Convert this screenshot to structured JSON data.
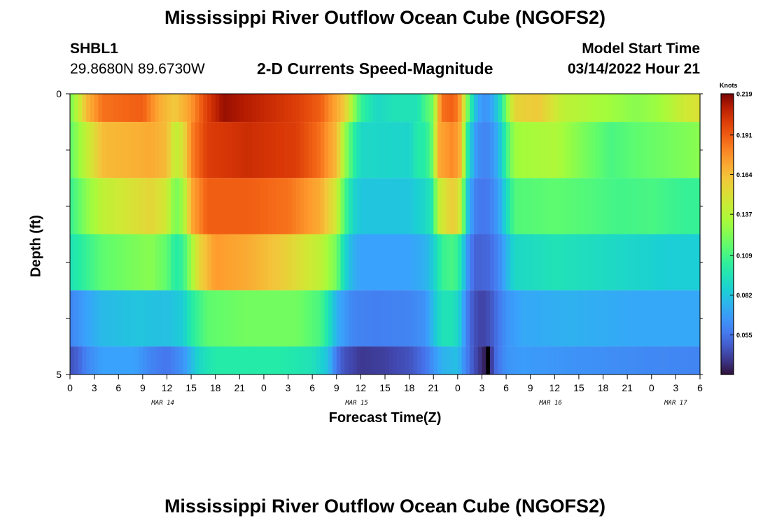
{
  "header": {
    "title": "Mississippi River Outflow Ocean Cube (NGOFS2)",
    "station": "SHBL1",
    "coordinates": "29.8680N  89.6730W",
    "start_label": "Model Start Time",
    "start_value": "03/14/2022 Hour 21"
  },
  "footer": {
    "title": "Mississippi River Outflow Ocean Cube (NGOFS2)"
  },
  "chart_data": {
    "type": "heatmap",
    "title": "2-D Currents Speed-Magnitude",
    "xlabel": "Forecast Time(Z)",
    "ylabel": "Depth (ft)",
    "y_ticks": [
      "0",
      "5"
    ],
    "ylim": [
      0,
      5
    ],
    "x_tick_labels": [
      "0",
      "3",
      "6",
      "9",
      "12",
      "15",
      "18",
      "21",
      "0",
      "3",
      "6",
      "9",
      "12",
      "15",
      "18",
      "21",
      "0",
      "3",
      "6",
      "9",
      "12",
      "15",
      "18",
      "21",
      "0",
      "3",
      "6"
    ],
    "date_labels": [
      {
        "label": "MAR 14",
        "hour": 11.5
      },
      {
        "label": "MAR 15",
        "hour": 35.5
      },
      {
        "label": "MAR 16",
        "hour": 59.5
      },
      {
        "label": "MAR 17",
        "hour": 75
      }
    ],
    "colorbar": {
      "unit": "Knots",
      "min": 0.028,
      "max": 0.219,
      "tick_labels": [
        "0.219",
        "0.191",
        "0.164",
        "0.137",
        "0.109",
        "0.082",
        "0.055"
      ]
    },
    "hour_range": [
      0,
      78
    ],
    "layers": [
      {
        "depth_top": 0.0,
        "depth_bottom": 0.5,
        "keys": [
          [
            0,
            0.12
          ],
          [
            1,
            0.14
          ],
          [
            2,
            0.165
          ],
          [
            4,
            0.185
          ],
          [
            9,
            0.19
          ],
          [
            11,
            0.17
          ],
          [
            13,
            0.16
          ],
          [
            15,
            0.175
          ],
          [
            17,
            0.2
          ],
          [
            19,
            0.215
          ],
          [
            22,
            0.21
          ],
          [
            25,
            0.205
          ],
          [
            28,
            0.2
          ],
          [
            31,
            0.19
          ],
          [
            33,
            0.17
          ],
          [
            34,
            0.16
          ],
          [
            35,
            0.13
          ],
          [
            36,
            0.105
          ],
          [
            38,
            0.09
          ],
          [
            40,
            0.095
          ],
          [
            43,
            0.095
          ],
          [
            44,
            0.11
          ],
          [
            45,
            0.12
          ],
          [
            45.5,
            0.16
          ],
          [
            46,
            0.185
          ],
          [
            47.5,
            0.19
          ],
          [
            48.5,
            0.17
          ],
          [
            49,
            0.13
          ],
          [
            50,
            0.085
          ],
          [
            51,
            0.065
          ],
          [
            52,
            0.068
          ],
          [
            53,
            0.085
          ],
          [
            54,
            0.12
          ],
          [
            55,
            0.155
          ],
          [
            58,
            0.16
          ],
          [
            61,
            0.14
          ],
          [
            64,
            0.135
          ],
          [
            67,
            0.13
          ],
          [
            70,
            0.125
          ],
          [
            73,
            0.13
          ],
          [
            76,
            0.145
          ],
          [
            78,
            0.15
          ]
        ]
      },
      {
        "depth_top": 0.5,
        "depth_bottom": 1.5,
        "keys": [
          [
            0,
            0.115
          ],
          [
            2,
            0.14
          ],
          [
            4,
            0.165
          ],
          [
            10,
            0.17
          ],
          [
            12,
            0.165
          ],
          [
            13,
            0.14
          ],
          [
            14,
            0.15
          ],
          [
            15,
            0.18
          ],
          [
            17,
            0.2
          ],
          [
            22,
            0.205
          ],
          [
            28,
            0.2
          ],
          [
            31,
            0.185
          ],
          [
            33,
            0.165
          ],
          [
            34,
            0.13
          ],
          [
            35,
            0.105
          ],
          [
            36,
            0.09
          ],
          [
            42,
            0.088
          ],
          [
            43,
            0.1
          ],
          [
            44,
            0.1
          ],
          [
            45,
            0.12
          ],
          [
            45.5,
            0.17
          ],
          [
            47.5,
            0.18
          ],
          [
            48.5,
            0.165
          ],
          [
            49,
            0.11
          ],
          [
            50,
            0.07
          ],
          [
            51,
            0.06
          ],
          [
            52,
            0.062
          ],
          [
            53,
            0.075
          ],
          [
            54,
            0.105
          ],
          [
            55,
            0.13
          ],
          [
            60,
            0.135
          ],
          [
            64,
            0.12
          ],
          [
            67,
            0.11
          ],
          [
            70,
            0.115
          ],
          [
            74,
            0.12
          ],
          [
            78,
            0.125
          ]
        ]
      },
      {
        "depth_top": 1.5,
        "depth_bottom": 2.5,
        "keys": [
          [
            0,
            0.105
          ],
          [
            2,
            0.125
          ],
          [
            4,
            0.14
          ],
          [
            10,
            0.155
          ],
          [
            12,
            0.145
          ],
          [
            13,
            0.12
          ],
          [
            14,
            0.13
          ],
          [
            15,
            0.17
          ],
          [
            17,
            0.19
          ],
          [
            22,
            0.19
          ],
          [
            27,
            0.185
          ],
          [
            31,
            0.17
          ],
          [
            33,
            0.145
          ],
          [
            34,
            0.11
          ],
          [
            35,
            0.09
          ],
          [
            36,
            0.082
          ],
          [
            42,
            0.082
          ],
          [
            44,
            0.09
          ],
          [
            45,
            0.1
          ],
          [
            45.5,
            0.14
          ],
          [
            47.5,
            0.16
          ],
          [
            48.5,
            0.14
          ],
          [
            49,
            0.09
          ],
          [
            50,
            0.06
          ],
          [
            51,
            0.055
          ],
          [
            52,
            0.058
          ],
          [
            53,
            0.068
          ],
          [
            54,
            0.09
          ],
          [
            55,
            0.112
          ],
          [
            60,
            0.115
          ],
          [
            64,
            0.112
          ],
          [
            68,
            0.108
          ],
          [
            72,
            0.11
          ],
          [
            76,
            0.105
          ],
          [
            78,
            0.105
          ]
        ]
      },
      {
        "depth_top": 2.5,
        "depth_bottom": 3.5,
        "keys": [
          [
            0,
            0.095
          ],
          [
            2,
            0.105
          ],
          [
            4,
            0.115
          ],
          [
            10,
            0.125
          ],
          [
            12,
            0.115
          ],
          [
            13,
            0.1
          ],
          [
            14,
            0.105
          ],
          [
            16,
            0.155
          ],
          [
            18,
            0.175
          ],
          [
            22,
            0.17
          ],
          [
            26,
            0.16
          ],
          [
            31,
            0.14
          ],
          [
            33,
            0.12
          ],
          [
            34,
            0.09
          ],
          [
            35,
            0.075
          ],
          [
            36,
            0.07
          ],
          [
            42,
            0.07
          ],
          [
            44,
            0.075
          ],
          [
            45,
            0.085
          ],
          [
            46,
            0.105
          ],
          [
            47.5,
            0.11
          ],
          [
            48.5,
            0.095
          ],
          [
            49,
            0.07
          ],
          [
            50,
            0.05
          ],
          [
            51,
            0.05
          ],
          [
            52,
            0.052
          ],
          [
            53,
            0.06
          ],
          [
            54,
            0.075
          ],
          [
            55,
            0.09
          ],
          [
            60,
            0.095
          ],
          [
            68,
            0.09
          ],
          [
            74,
            0.085
          ],
          [
            78,
            0.085
          ]
        ]
      },
      {
        "depth_top": 3.5,
        "depth_bottom": 4.5,
        "keys": [
          [
            0,
            0.06
          ],
          [
            2,
            0.07
          ],
          [
            4,
            0.078
          ],
          [
            8,
            0.082
          ],
          [
            12,
            0.08
          ],
          [
            14,
            0.085
          ],
          [
            15,
            0.1
          ],
          [
            17,
            0.115
          ],
          [
            22,
            0.12
          ],
          [
            28,
            0.12
          ],
          [
            31,
            0.11
          ],
          [
            32,
            0.095
          ],
          [
            33,
            0.075
          ],
          [
            35,
            0.06
          ],
          [
            38,
            0.058
          ],
          [
            42,
            0.06
          ],
          [
            44,
            0.065
          ],
          [
            45,
            0.08
          ],
          [
            46,
            0.095
          ],
          [
            47.5,
            0.095
          ],
          [
            48.5,
            0.08
          ],
          [
            49,
            0.06
          ],
          [
            50,
            0.045
          ],
          [
            51,
            0.04
          ],
          [
            52,
            0.045
          ],
          [
            53,
            0.055
          ],
          [
            54,
            0.065
          ],
          [
            56,
            0.072
          ],
          [
            62,
            0.075
          ],
          [
            70,
            0.072
          ],
          [
            78,
            0.072
          ]
        ]
      },
      {
        "depth_top": 4.5,
        "depth_bottom": 5.0,
        "keys": [
          [
            0,
            0.045
          ],
          [
            1,
            0.05
          ],
          [
            2,
            0.06
          ],
          [
            4,
            0.07
          ],
          [
            8,
            0.07
          ],
          [
            10,
            0.06
          ],
          [
            12,
            0.055
          ],
          [
            14,
            0.065
          ],
          [
            16,
            0.09
          ],
          [
            18,
            0.1
          ],
          [
            26,
            0.1
          ],
          [
            30,
            0.095
          ],
          [
            32,
            0.08
          ],
          [
            33,
            0.055
          ],
          [
            34,
            0.045
          ],
          [
            36,
            0.038
          ],
          [
            39,
            0.04
          ],
          [
            42,
            0.045
          ],
          [
            44,
            0.055
          ],
          [
            45,
            0.065
          ],
          [
            46,
            0.075
          ],
          [
            48,
            0.08
          ],
          [
            49,
            0.06
          ],
          [
            50,
            0.045
          ],
          [
            51,
            0.035
          ],
          [
            51.5,
            0.029
          ],
          [
            52,
            0.03
          ],
          [
            52.5,
            0.05
          ],
          [
            53,
            0.055
          ],
          [
            54,
            0.065
          ],
          [
            56,
            0.068
          ],
          [
            62,
            0.065
          ],
          [
            70,
            0.062
          ],
          [
            78,
            0.06
          ]
        ]
      }
    ]
  }
}
